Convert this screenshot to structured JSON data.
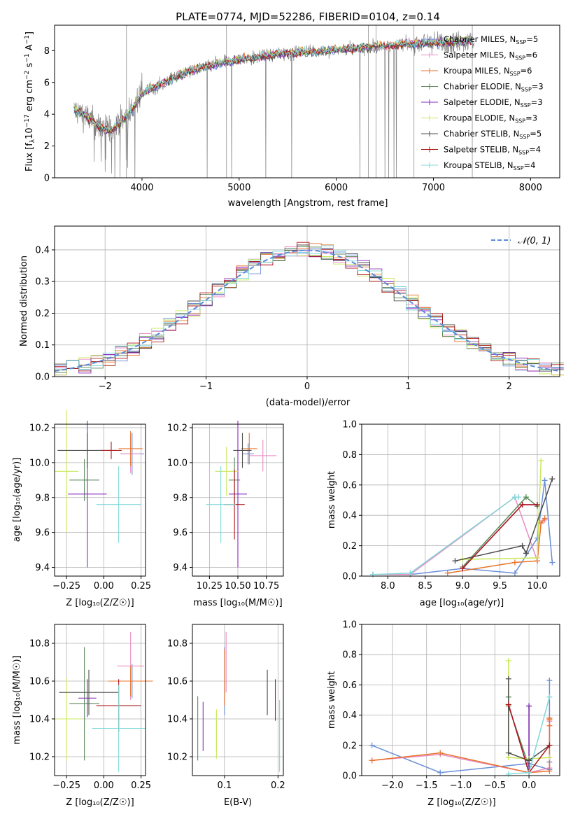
{
  "title": "PLATE=0774, MJD=52286, FIBERID=0104, z=0.14",
  "colors": {
    "Chabrier MILES": "#6a8fd8",
    "Salpeter MILES": "#e98bc4",
    "Kroupa MILES": "#e8742c",
    "Chabrier ELODIE": "#5a8a5a",
    "Salpeter ELODIE": "#8a2bbf",
    "Kroupa ELODIE": "#c8e85a",
    "Chabrier STELIB": "#4d4d4d",
    "Salpeter STELIB": "#b01818",
    "Kroupa STELIB": "#7fd8d8",
    "data": "#808080",
    "normal": "#5b8ad8"
  },
  "chart_data": [
    {
      "id": "spectrum",
      "type": "line",
      "title": "PLATE=0774, MJD=52286, FIBERID=0104, z=0.14",
      "xlabel": "wavelength [Angstrom, rest frame]",
      "ylabel_parts": [
        "Flux [f",
        "λ",
        "10",
        "−17",
        " erg cm",
        "−2",
        " s",
        "−1",
        " A",
        "−1",
        "]"
      ],
      "xlim": [
        3100,
        8300
      ],
      "ylim": [
        0,
        9.6
      ],
      "xticks": [
        4000,
        5000,
        6000,
        7000,
        8000
      ],
      "yticks": [
        0,
        2,
        4,
        6,
        8
      ],
      "legend": [
        {
          "name": "Chabrier MILES",
          "n": 5
        },
        {
          "name": "Salpeter MILES",
          "n": 6
        },
        {
          "name": "Kroupa MILES",
          "n": 6
        },
        {
          "name": "Chabrier ELODIE",
          "n": 3
        },
        {
          "name": "Salpeter ELODIE",
          "n": 3
        },
        {
          "name": "Kroupa ELODIE",
          "n": 3
        },
        {
          "name": "Chabrier STELIB",
          "n": 5
        },
        {
          "name": "Salpeter STELIB",
          "n": 4
        },
        {
          "name": "Kroupa STELIB",
          "n": 4
        }
      ],
      "legend_placement": "right",
      "continuum": {
        "x": [
          3300,
          3400,
          3500,
          3600,
          3700,
          3800,
          3900,
          4000,
          4100,
          4200,
          4400,
          4600,
          4800,
          5000,
          5200,
          5400,
          5600,
          5800,
          6000,
          6200,
          6400,
          6600,
          6800,
          7000,
          7200,
          7400
        ],
        "y": [
          4.25,
          4.0,
          3.5,
          3.05,
          3.0,
          3.6,
          4.3,
          5.3,
          5.6,
          5.9,
          6.5,
          6.9,
          7.2,
          7.45,
          7.6,
          7.8,
          7.9,
          7.95,
          8.05,
          8.15,
          8.25,
          8.35,
          8.45,
          8.5,
          8.55,
          8.6
        ]
      }
    },
    {
      "id": "residuals",
      "type": "step",
      "xlabel": "(data-model)/error",
      "ylabel": "Normed distribution",
      "xlim": [
        -2.5,
        2.5
      ],
      "ylim": [
        0,
        0.475
      ],
      "xticks": [
        -2,
        -1,
        0,
        1,
        2
      ],
      "yticks": [
        0.0,
        0.1,
        0.2,
        0.3,
        0.4
      ],
      "legend": "𝒩(0, 1)",
      "legend_placement": "top-right",
      "grid": true
    },
    {
      "id": "age_vs_Z",
      "type": "errorbar",
      "xlabel": "Z [log₁₀(Z/Z☉)]",
      "ylabel": "age  [log₁₀(age/yr)]",
      "xlim": [
        -0.33,
        0.28
      ],
      "ylim": [
        9.35,
        10.22
      ],
      "xticks": [
        -0.25,
        0.0,
        0.25
      ],
      "xticklabels": [
        "−0.25",
        "0.00",
        "0.25"
      ],
      "yticks": [
        9.4,
        9.6,
        9.8,
        10.0,
        10.2
      ],
      "grid": true,
      "points": [
        {
          "model": "Chabrier MILES",
          "x": 0.19,
          "y": 10.05,
          "xerr": 0.08,
          "yerr": 0.12
        },
        {
          "model": "Salpeter MILES",
          "x": 0.18,
          "y": 10.05,
          "xerr": 0.07,
          "yerr": 0.11
        },
        {
          "model": "Kroupa MILES",
          "x": 0.18,
          "y": 10.08,
          "xerr": 0.08,
          "yerr": 0.1
        },
        {
          "model": "Chabrier ELODIE",
          "x": -0.13,
          "y": 9.9,
          "xerr": 0.1,
          "yerr": 0.12
        },
        {
          "model": "Salpeter ELODIE",
          "x": -0.11,
          "y": 9.82,
          "xerr": 0.13,
          "yerr": 0.42
        },
        {
          "model": "Kroupa ELODIE",
          "x": -0.25,
          "y": 9.95,
          "xerr": 0.08,
          "yerr": 0.35
        },
        {
          "model": "Chabrier STELIB",
          "x": -0.11,
          "y": 10.07,
          "xerr": 0.2,
          "yerr": 0.1
        },
        {
          "model": "Salpeter STELIB",
          "x": 0.05,
          "y": 10.07,
          "xerr": 0.07,
          "yerr": 0.05
        },
        {
          "model": "Kroupa STELIB",
          "x": 0.1,
          "y": 9.76,
          "xerr": 0.15,
          "yerr": 0.22
        }
      ]
    },
    {
      "id": "age_vs_mass",
      "type": "errorbar",
      "xlabel": "mass [log₁₀(M/M☉)]",
      "xlim": [
        10.1,
        10.9
      ],
      "ylim": [
        9.35,
        10.22
      ],
      "xticks": [
        10.25,
        10.5,
        10.75
      ],
      "xticklabels": [
        "10.25",
        "10.50",
        "10.75"
      ],
      "yticks": [
        9.4,
        9.6,
        9.8,
        10.0,
        10.2
      ],
      "grid": true,
      "points": [
        {
          "model": "Chabrier MILES",
          "x": 10.59,
          "y": 10.05,
          "xerr": 0.05,
          "yerr": 0.06
        },
        {
          "model": "Salpeter MILES",
          "x": 10.72,
          "y": 10.04,
          "xerr": 0.12,
          "yerr": 0.09
        },
        {
          "model": "Kroupa MILES",
          "x": 10.6,
          "y": 10.08,
          "xerr": 0.07,
          "yerr": 0.09
        },
        {
          "model": "Chabrier ELODIE",
          "x": 10.47,
          "y": 9.9,
          "xerr": 0.05,
          "yerr": 0.13
        },
        {
          "model": "Salpeter ELODIE",
          "x": 10.5,
          "y": 9.82,
          "xerr": 0.08,
          "yerr": 0.42
        },
        {
          "model": "Kroupa ELODIE",
          "x": 10.4,
          "y": 9.95,
          "xerr": 0.1,
          "yerr": 0.14
        },
        {
          "model": "Chabrier STELIB",
          "x": 10.54,
          "y": 10.07,
          "xerr": 0.08,
          "yerr": 0.1
        },
        {
          "model": "Salpeter STELIB",
          "x": 10.47,
          "y": 9.76,
          "xerr": 0.09,
          "yerr": 0.2
        },
        {
          "model": "Kroupa STELIB",
          "x": 10.35,
          "y": 9.76,
          "xerr": 0.13,
          "yerr": 0.22
        }
      ]
    },
    {
      "id": "weight_vs_age",
      "type": "line",
      "xlabel": "age  [log₁₀(age/yr)]",
      "ylabel": "mass weight",
      "xlim": [
        7.65,
        10.3
      ],
      "ylim": [
        0,
        1.0
      ],
      "xticks": [
        8.0,
        8.5,
        9.0,
        9.5,
        10.0
      ],
      "yticks": [
        0.0,
        0.2,
        0.4,
        0.6,
        0.8,
        1.0
      ],
      "grid": true,
      "series": [
        {
          "name": "Chabrier MILES",
          "x": [
            7.8,
            8.3,
            9.0,
            9.7,
            10.0,
            10.1,
            10.2
          ],
          "y": [
            0.01,
            0.01,
            0.05,
            0.02,
            0.25,
            0.63,
            0.09
          ]
        },
        {
          "name": "Salpeter MILES",
          "x": [
            7.8,
            8.3,
            9.7,
            10.0,
            10.05,
            10.1
          ],
          "y": [
            0.01,
            0.01,
            0.52,
            0.1,
            0.35,
            0.37
          ]
        },
        {
          "name": "Kroupa MILES",
          "x": [
            8.8,
            9.7,
            10.0,
            10.05,
            10.1
          ],
          "y": [
            0.02,
            0.09,
            0.1,
            0.35,
            0.38
          ]
        },
        {
          "name": "Chabrier ELODIE",
          "x": [
            9.0,
            9.85,
            10.0
          ],
          "y": [
            0.06,
            0.52,
            0.46
          ]
        },
        {
          "name": "Salpeter ELODIE",
          "x": [
            9.0,
            9.8,
            10.0
          ],
          "y": [
            0.05,
            0.47,
            0.47
          ]
        },
        {
          "name": "Kroupa ELODIE",
          "x": [
            9.0,
            10.0,
            10.05
          ],
          "y": [
            0.11,
            0.12,
            0.76
          ]
        },
        {
          "name": "Chabrier STELIB",
          "x": [
            8.9,
            9.8,
            9.85,
            10.2
          ],
          "y": [
            0.1,
            0.2,
            0.15,
            0.64
          ]
        },
        {
          "name": "Salpeter STELIB",
          "x": [
            9.0,
            9.8,
            10.0
          ],
          "y": [
            0.05,
            0.47,
            0.47
          ]
        },
        {
          "name": "Kroupa STELIB",
          "x": [
            7.8,
            8.3,
            9.7,
            9.75
          ],
          "y": [
            0.01,
            0.02,
            0.52,
            0.52
          ]
        }
      ]
    },
    {
      "id": "mass_vs_Z",
      "type": "errorbar",
      "xlabel": "Z [log₁₀(Z/Z☉)]",
      "ylabel": "mass [log₁₀(M/M☉)]",
      "xlim": [
        -0.33,
        0.28
      ],
      "ylim": [
        10.1,
        10.9
      ],
      "xticks": [
        -0.25,
        0.0,
        0.25
      ],
      "xticklabels": [
        "−0.25",
        "0.00",
        "0.25"
      ],
      "yticks": [
        10.2,
        10.4,
        10.6,
        10.8
      ],
      "grid": true,
      "points": [
        {
          "model": "Chabrier MILES",
          "x": 0.19,
          "y": 10.6,
          "xerr": 0.08,
          "yerr": 0.09
        },
        {
          "model": "Salpeter MILES",
          "x": 0.18,
          "y": 10.68,
          "xerr": 0.09,
          "yerr": 0.18
        },
        {
          "model": "Kroupa MILES",
          "x": 0.18,
          "y": 10.6,
          "xerr": 0.15,
          "yerr": 0.08
        },
        {
          "model": "Chabrier ELODIE",
          "x": -0.13,
          "y": 10.48,
          "xerr": 0.1,
          "yerr": 0.3
        },
        {
          "model": "Salpeter ELODIE",
          "x": -0.11,
          "y": 10.51,
          "xerr": 0.06,
          "yerr": 0.1
        },
        {
          "model": "Kroupa ELODIE",
          "x": -0.25,
          "y": 10.4,
          "xerr": 0.1,
          "yerr": 0.22
        },
        {
          "model": "Chabrier STELIB",
          "x": -0.1,
          "y": 10.54,
          "xerr": 0.2,
          "yerr": 0.12
        },
        {
          "model": "Salpeter STELIB",
          "x": 0.1,
          "y": 10.47,
          "xerr": 0.15,
          "yerr": 0.14
        },
        {
          "model": "Kroupa STELIB",
          "x": 0.1,
          "y": 10.35,
          "xerr": 0.18,
          "yerr": 0.23
        }
      ]
    },
    {
      "id": "mass_vs_EBV",
      "type": "errorbar",
      "xlabel": "E(B-V)",
      "xlim": [
        0.04,
        0.21
      ],
      "ylim": [
        10.1,
        10.9
      ],
      "xticks": [
        0.1,
        0.2
      ],
      "xticklabels": [
        "0.1",
        "0.2"
      ],
      "yticks": [
        10.2,
        10.4,
        10.6,
        10.8
      ],
      "grid": true,
      "points": [
        {
          "model": "Chabrier MILES",
          "x": 0.1,
          "y": 10.6,
          "yerr": 0.18
        },
        {
          "model": "Salpeter MILES",
          "x": 0.103,
          "y": 10.7,
          "yerr": 0.16
        },
        {
          "model": "Kroupa MILES",
          "x": 0.1,
          "y": 10.62,
          "yerr": 0.15
        },
        {
          "model": "Chabrier ELODIE",
          "x": 0.05,
          "y": 10.35,
          "yerr": 0.17
        },
        {
          "model": "Salpeter ELODIE",
          "x": 0.06,
          "y": 10.36,
          "yerr": 0.13
        },
        {
          "model": "Kroupa ELODIE",
          "x": 0.085,
          "y": 10.32,
          "yerr": 0.13
        },
        {
          "model": "Chabrier STELIB",
          "x": 0.18,
          "y": 10.54,
          "yerr": 0.12
        },
        {
          "model": "Salpeter STELIB",
          "x": 0.195,
          "y": 10.5,
          "yerr": 0.11
        },
        {
          "model": "Kroupa STELIB",
          "x": 0.203,
          "y": 10.31,
          "yerr": 0.19
        }
      ]
    },
    {
      "id": "weight_vs_Z",
      "type": "line",
      "xlabel": "Z [log₁₀(Z/Z☉)]",
      "ylabel": "mass weight",
      "xlim": [
        -2.45,
        0.45
      ],
      "ylim": [
        0,
        1.0
      ],
      "xticks": [
        -2.0,
        -1.5,
        -1.0,
        -0.5,
        0.0
      ],
      "xticklabels": [
        "−2.0",
        "−1.5",
        "−1.0",
        "−0.5",
        "0.0"
      ],
      "yticks": [
        0.0,
        0.2,
        0.4,
        0.6,
        0.8,
        1.0
      ],
      "grid": true,
      "series": [
        {
          "name": "Chabrier MILES",
          "x": [
            -2.3,
            -1.3,
            0.0,
            0.3,
            0.3,
            0.3
          ],
          "y": [
            0.2,
            0.02,
            0.08,
            0.04,
            0.63,
            0.09
          ]
        },
        {
          "name": "Salpeter MILES",
          "x": [
            -2.3,
            -1.3,
            0.0,
            0.3,
            0.3,
            0.3
          ],
          "y": [
            0.1,
            0.14,
            0.02,
            0.05,
            0.38,
            0.36
          ]
        },
        {
          "name": "Kroupa MILES",
          "x": [
            -2.3,
            -1.3,
            0.0,
            0.3,
            0.3,
            0.3,
            0.3
          ],
          "y": [
            0.1,
            0.15,
            0.02,
            0.03,
            0.33,
            0.37,
            0.38
          ]
        },
        {
          "name": "Chabrier ELODIE",
          "x": [
            -0.3,
            -0.3,
            0.0,
            0.0
          ],
          "y": [
            0.52,
            0.46,
            0.06,
            0.46
          ]
        },
        {
          "name": "Salpeter ELODIE",
          "x": [
            -0.3,
            0.0,
            0.0
          ],
          "y": [
            0.47,
            0.02,
            0.46
          ]
        },
        {
          "name": "Kroupa ELODIE",
          "x": [
            -0.3,
            -0.3,
            0.0,
            0.3
          ],
          "y": [
            0.76,
            0.12,
            0.11,
            0.12
          ]
        },
        {
          "name": "Chabrier STELIB",
          "x": [
            -0.3,
            -0.3,
            0.0,
            0.3
          ],
          "y": [
            0.64,
            0.15,
            0.1,
            0.2
          ]
        },
        {
          "name": "Salpeter STELIB",
          "x": [
            -0.3,
            0.0,
            0.3
          ],
          "y": [
            0.47,
            0.02,
            0.2
          ]
        },
        {
          "name": "Kroupa STELIB",
          "x": [
            -0.3,
            0.0,
            0.3
          ],
          "y": [
            0.01,
            0.02,
            0.52
          ]
        }
      ]
    }
  ]
}
